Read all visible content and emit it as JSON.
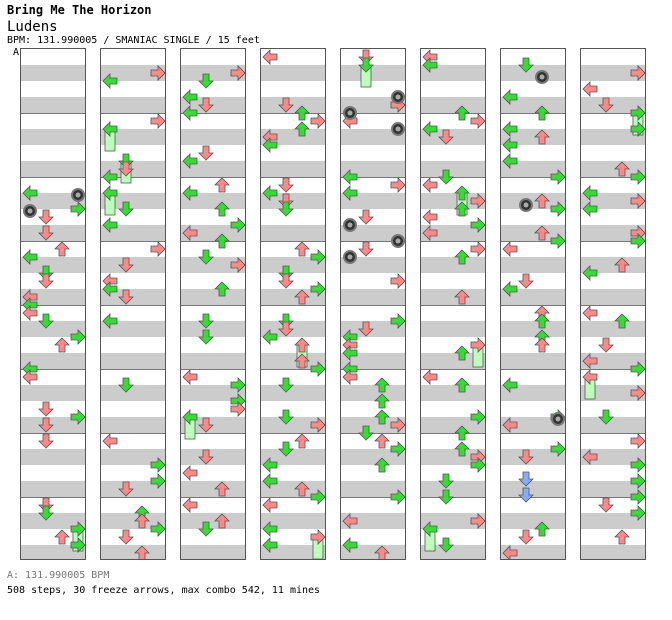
{
  "header": {
    "artist": "Bring Me The Horizon",
    "title": "Ludens",
    "info": "BPM: 131.990005 / SMANIAC SINGLE / 15 feet",
    "bpm_marker": "A"
  },
  "footer": {
    "bpm_legend": "A: 131.990005 BPM",
    "stats": "508 steps, 30 freeze arrows, max combo 542, 11 mines"
  },
  "colors": {
    "grid_light": "#ffffff",
    "grid_dark": "#cccccc",
    "border": "#555555",
    "arrow_green": "#33dd33",
    "arrow_pink": "#ff8888",
    "arrow_blue": "#88aaff",
    "freeze_fill": "#bbffbb",
    "mine": "#333333"
  }
}
